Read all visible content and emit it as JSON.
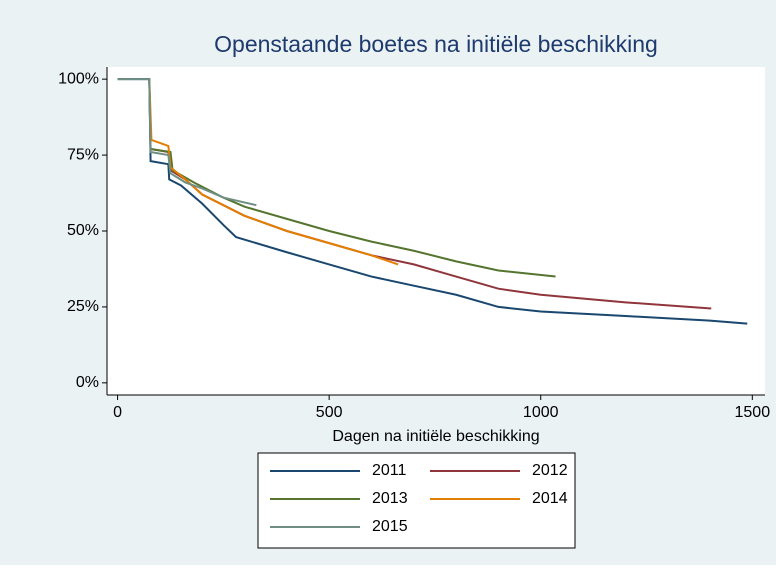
{
  "chart_data": {
    "type": "line",
    "title": "Openstaande boetes na initiële beschikking",
    "xlabel": "Dagen na initiële beschikking",
    "xlim": [
      -25,
      1530
    ],
    "xticks": [
      0,
      500,
      1000,
      1500
    ],
    "ylim": [
      -4,
      104
    ],
    "yticks": [
      {
        "value": 0,
        "label": "0%"
      },
      {
        "value": 25,
        "label": "25%"
      },
      {
        "value": 50,
        "label": "50%"
      },
      {
        "value": 75,
        "label": "75%"
      },
      {
        "value": 100,
        "label": "100%"
      }
    ],
    "grid": false,
    "legend": "bottom",
    "series": [
      {
        "name": "2011",
        "color": "#1a476f",
        "x": [
          0,
          75,
          78,
          120,
          122,
          150,
          200,
          250,
          280,
          400,
          500,
          600,
          700,
          800,
          900,
          1000,
          1200,
          1400,
          1488
        ],
        "values": [
          100,
          100,
          73,
          72,
          67,
          65,
          59,
          52,
          48,
          43,
          39,
          35,
          32,
          29,
          25,
          23.5,
          22,
          20.5,
          19.5
        ]
      },
      {
        "name": "2012",
        "color": "#90353b",
        "x": [
          75,
          78,
          120,
          125,
          160,
          200,
          300,
          400,
          500,
          600,
          700,
          800,
          900,
          1000,
          1200,
          1403
        ],
        "values": [
          100,
          77,
          76,
          70,
          67,
          62,
          55,
          50,
          46,
          42,
          39,
          35,
          31,
          29,
          26.5,
          24.5
        ]
      },
      {
        "name": "2013",
        "color": "#55752f",
        "x": [
          75,
          78,
          125,
          130,
          180,
          250,
          300,
          400,
          500,
          600,
          700,
          800,
          900,
          1035
        ],
        "values": [
          100,
          77,
          76,
          70,
          66,
          61,
          58,
          54,
          50,
          46.5,
          43.5,
          40,
          37,
          35
        ]
      },
      {
        "name": "2014",
        "color": "#e37e00",
        "x": [
          75,
          80,
          120,
          125,
          160,
          200,
          300,
          400,
          500,
          600,
          663
        ],
        "values": [
          100,
          80,
          78,
          71,
          67,
          62,
          55,
          50,
          46,
          42,
          39
        ]
      },
      {
        "name": "2015",
        "color": "#6e8e84",
        "x": [
          0,
          75,
          78,
          120,
          125,
          160,
          200,
          250,
          328
        ],
        "values": [
          100,
          100,
          76,
          75,
          69,
          66,
          64,
          61,
          58.5
        ]
      }
    ]
  }
}
